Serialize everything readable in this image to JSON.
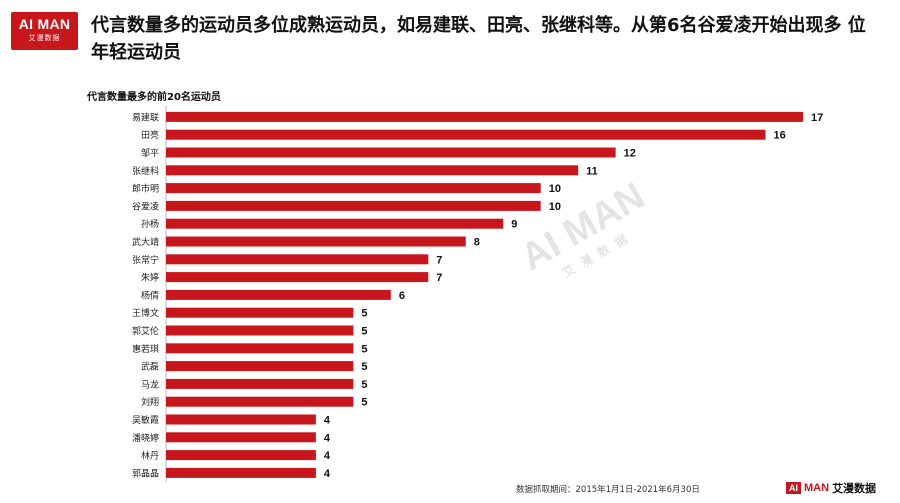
{
  "logo": {
    "brand": "AI MAN",
    "sub": "艾漫数据"
  },
  "headline": "代言数量多的运动员多位成熟运动员，如易建联、田亮、张继科等。从第6名谷爱凌开始出现多 位年轻运动员",
  "watermark": {
    "brand": "AI MAN",
    "sub": "艾漫数据"
  },
  "footer": {
    "source": "数据抓取期间：2015年1月1日-2021年6月30日",
    "logo_box": "AI",
    "logo_word": "MAN",
    "logo_cn": "艾漫数据"
  },
  "colors": {
    "bar": "#c8161d",
    "accent": "#c8161d"
  },
  "chart_data": {
    "type": "bar",
    "orientation": "horizontal",
    "title": "代言数量最多的前20名运动员",
    "categories": [
      "易建联",
      "田亮",
      "邹平",
      "张继科",
      "郎市明",
      "谷爱凌",
      "孙杨",
      "武大靖",
      "张常宁",
      "朱婷",
      "杨倩",
      "王博文",
      "郭艾伦",
      "惠若琪",
      "武磊",
      "马龙",
      "刘翔",
      "吴敏霞",
      "潘晓婷",
      "林丹",
      "郭晶晶"
    ],
    "values": [
      17,
      16,
      12,
      11,
      10,
      10,
      9,
      8,
      7,
      7,
      6,
      5,
      5,
      5,
      5,
      5,
      5,
      4,
      4,
      4,
      4
    ],
    "xlim": [
      0,
      17
    ],
    "grid": false,
    "legend": "none"
  }
}
